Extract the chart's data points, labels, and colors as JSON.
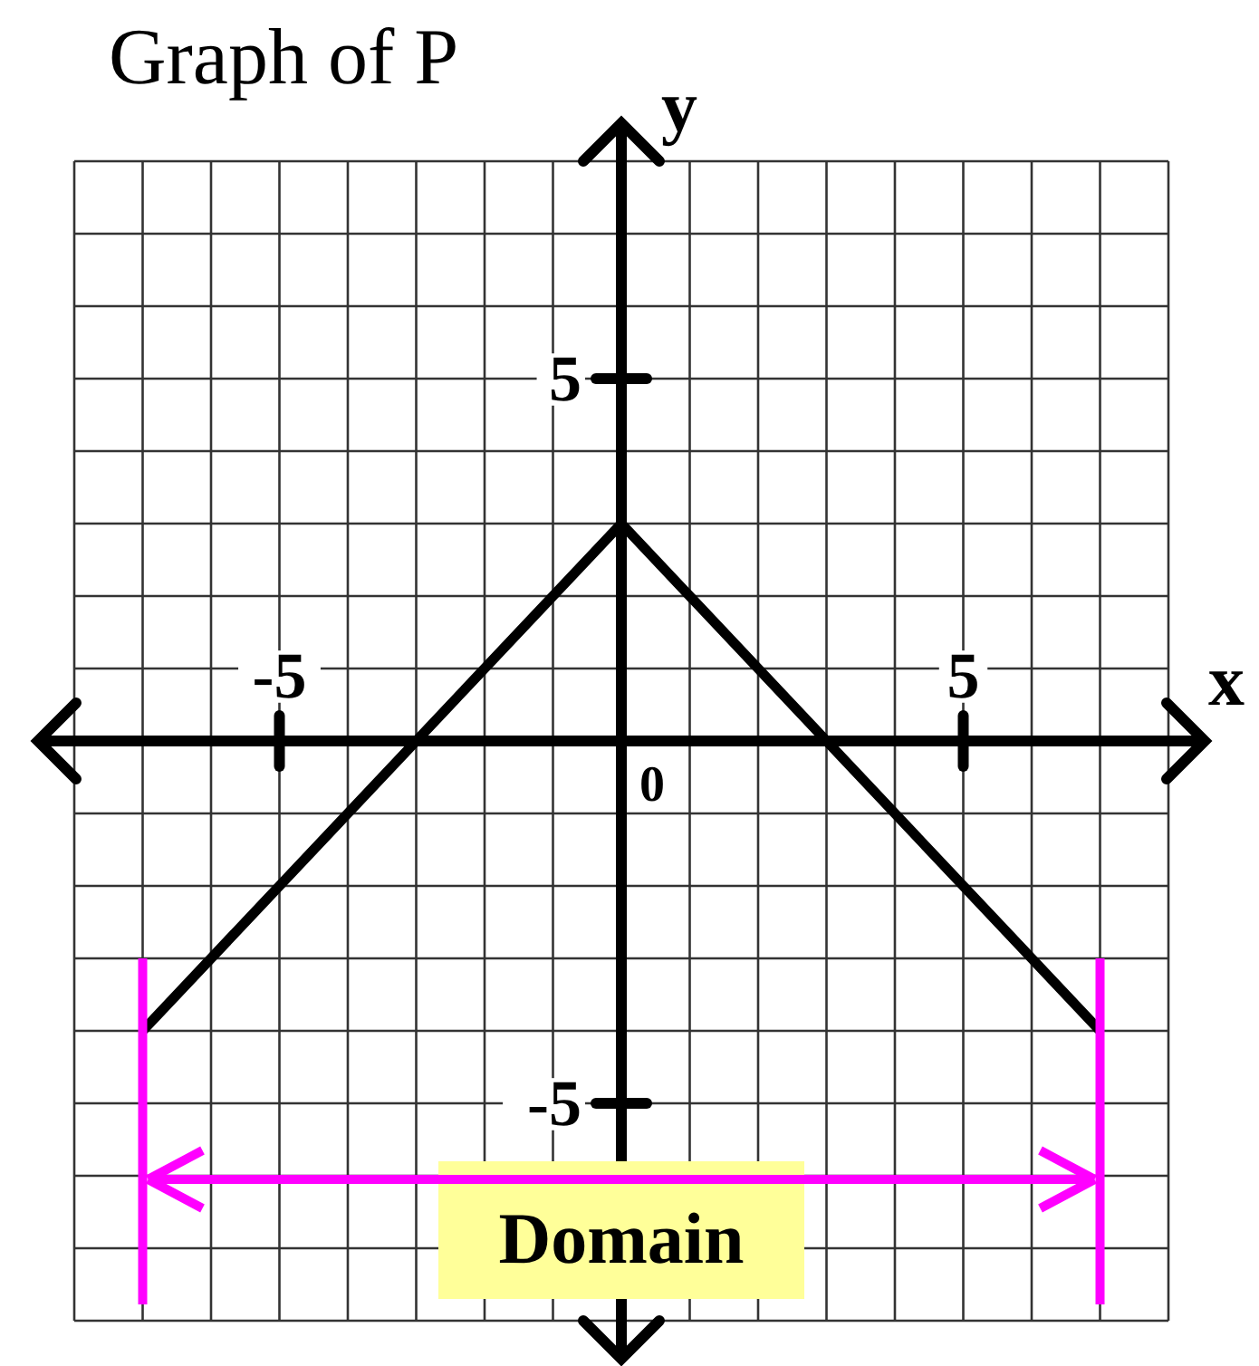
{
  "chart_data": {
    "type": "line",
    "title": "Graph of P",
    "xlabel": "x",
    "ylabel": "y",
    "x": [
      -7,
      0,
      7
    ],
    "series": [
      {
        "color": "#000000",
        "values": [
          -4,
          3,
          -4
        ]
      }
    ],
    "xlim": [
      -8,
      8
    ],
    "ylim": [
      -8,
      8
    ],
    "xticks": [
      {
        "value": -8,
        "label": null
      },
      {
        "value": -7,
        "label": null
      },
      {
        "value": -6,
        "label": null
      },
      -5,
      {
        "value": -4,
        "label": null
      },
      {
        "value": -3,
        "label": null
      },
      {
        "value": -2,
        "label": null
      },
      {
        "value": -1,
        "label": null
      },
      {
        "value": 0,
        "label": null
      },
      {
        "value": 1,
        "label": null
      },
      {
        "value": 2,
        "label": null
      },
      {
        "value": 3,
        "label": null
      },
      {
        "value": 4,
        "label": null
      },
      5,
      {
        "value": 6,
        "label": null
      },
      {
        "value": 7,
        "label": null
      },
      {
        "value": 8,
        "label": null
      }
    ],
    "yticks": [
      {
        "value": -8,
        "label": null
      },
      {
        "value": -7,
        "label": null
      },
      {
        "value": -6,
        "label": null
      },
      -5,
      {
        "value": -4,
        "label": null
      },
      {
        "value": -3,
        "label": null
      },
      {
        "value": -2,
        "label": null
      },
      {
        "value": -1,
        "label": null
      },
      {
        "value": 0,
        "label": null
      },
      {
        "value": 1,
        "label": null
      },
      {
        "value": 2,
        "label": null
      },
      {
        "value": 3,
        "label": null
      },
      {
        "value": 4,
        "label": null
      },
      5,
      {
        "value": 6,
        "label": null
      },
      {
        "value": 7,
        "label": null
      },
      {
        "value": 8,
        "label": null
      }
    ],
    "grid": true,
    "annotations": [
      "0",
      "Domain"
    ],
    "ref_lines": [
      {
        "axis": "x",
        "value": -7,
        "color": "#ff00ff"
      },
      {
        "axis": "x",
        "value": 7,
        "color": "#ff00ff"
      }
    ]
  }
}
